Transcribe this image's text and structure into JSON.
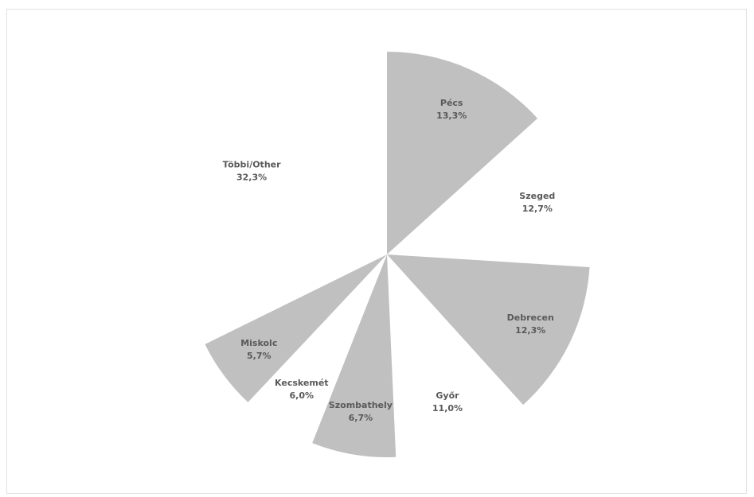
{
  "chart_data": {
    "type": "pie",
    "title": "",
    "categories": [
      "Pécs",
      "Szeged",
      "Debrecen",
      "Győr",
      "Szombathely",
      "Kecskemét",
      "Miskolc",
      "Többi/Other"
    ],
    "values": [
      13.3,
      12.7,
      12.3,
      11.0,
      6.7,
      6.0,
      5.7,
      32.3
    ],
    "value_labels": [
      "13,3%",
      "12,7%",
      "12,3%",
      "11,0%",
      "6,7%",
      "6,0%",
      "5,7%",
      "32,3%"
    ],
    "filled": [
      true,
      false,
      true,
      false,
      true,
      false,
      true,
      false
    ],
    "start_angle_deg": 0,
    "direction": "clockwise",
    "colors": {
      "filled": "#c0c0c0",
      "empty": "#ffffff",
      "label": "#595959",
      "border": "#e1e1e1"
    },
    "legend": "none"
  }
}
